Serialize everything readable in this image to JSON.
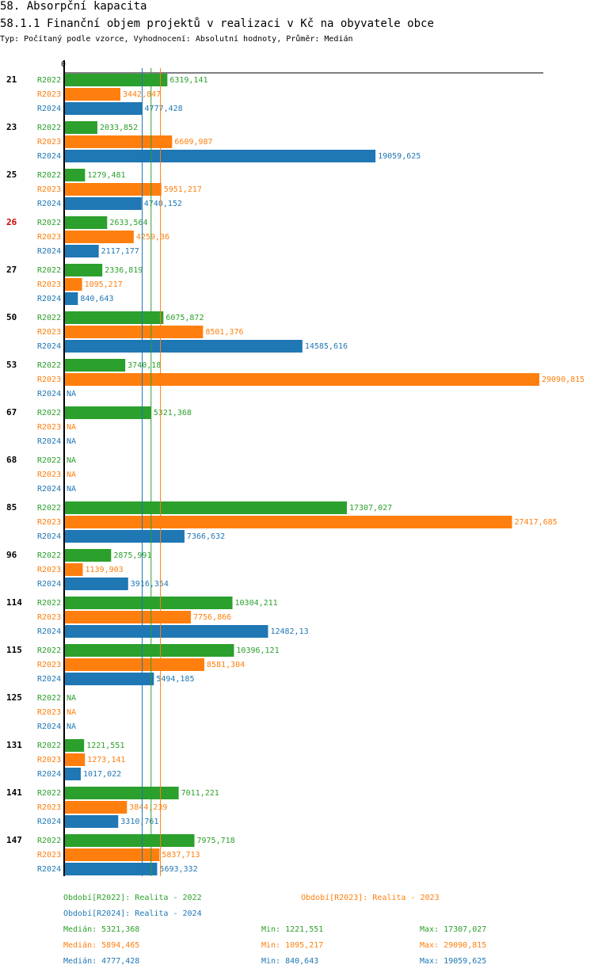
{
  "header": {
    "title": "58. Absorpční kapacita",
    "subtitle": "58.1.1 Finanční objem projektů v realizaci v Kč na obyvatele obce",
    "info": "Typ: Počítaný podle vzorce, Vyhodnocení: Absolutní hodnoty, Průměr: Medián"
  },
  "chart_data": {
    "type": "bar",
    "orientation": "horizontal",
    "title": "58.1.1 Finanční objem projektů v realizaci v Kč na obyvatele obce",
    "axis_zero_label": "0",
    "xlim": [
      0,
      29090.815
    ],
    "highlight_color": "#cc0000",
    "na_label": "NA",
    "series": [
      {
        "key": "R2022",
        "label": "R2022",
        "color": "#2ca02c",
        "median": 5321.368
      },
      {
        "key": "R2023",
        "label": "R2023",
        "color": "#ff7f0e",
        "median": 5894.465
      },
      {
        "key": "R2024",
        "label": "R2024",
        "color": "#1f77b4",
        "median": 4777.428
      }
    ],
    "groups": [
      {
        "name": "21",
        "highlight": false,
        "values": [
          6319.141,
          3442.847,
          4777.428
        ],
        "labels": [
          "6319,141",
          "3442,847",
          "4777,428"
        ]
      },
      {
        "name": "23",
        "highlight": false,
        "values": [
          2033.852,
          6609.987,
          19059.625
        ],
        "labels": [
          "2033,852",
          "6609,987",
          "19059,625"
        ]
      },
      {
        "name": "25",
        "highlight": false,
        "values": [
          1279.481,
          5951.217,
          4740.152
        ],
        "labels": [
          "1279,481",
          "5951,217",
          "4740,152"
        ]
      },
      {
        "name": "26",
        "highlight": true,
        "values": [
          2633.564,
          4259.36,
          2117.177
        ],
        "labels": [
          "2633,564",
          "4259,36",
          "2117,177"
        ]
      },
      {
        "name": "27",
        "highlight": false,
        "values": [
          2336.819,
          1095.217,
          840.643
        ],
        "labels": [
          "2336,819",
          "1095,217",
          "840,643"
        ]
      },
      {
        "name": "50",
        "highlight": false,
        "values": [
          6075.872,
          8501.376,
          14585.616
        ],
        "labels": [
          "6075,872",
          "8501,376",
          "14585,616"
        ]
      },
      {
        "name": "53",
        "highlight": false,
        "values": [
          3740.18,
          29090.815,
          null
        ],
        "labels": [
          "3740,18",
          "29090,815",
          "NA"
        ]
      },
      {
        "name": "67",
        "highlight": false,
        "values": [
          5321.368,
          null,
          null
        ],
        "labels": [
          "5321,368",
          "NA",
          "NA"
        ]
      },
      {
        "name": "68",
        "highlight": false,
        "values": [
          null,
          null,
          null
        ],
        "labels": [
          "NA",
          "NA",
          "NA"
        ]
      },
      {
        "name": "85",
        "highlight": false,
        "values": [
          17307.027,
          27417.685,
          7366.632
        ],
        "labels": [
          "17307,027",
          "27417,685",
          "7366,632"
        ]
      },
      {
        "name": "96",
        "highlight": false,
        "values": [
          2875.991,
          1139.903,
          3916.354
        ],
        "labels": [
          "2875,991",
          "1139,903",
          "3916,354"
        ]
      },
      {
        "name": "114",
        "highlight": false,
        "values": [
          10304.211,
          7756.866,
          12482.13
        ],
        "labels": [
          "10304,211",
          "7756,866",
          "12482,13"
        ]
      },
      {
        "name": "115",
        "highlight": false,
        "values": [
          10396.121,
          8581.304,
          5494.185
        ],
        "labels": [
          "10396,121",
          "8581,304",
          "5494,185"
        ]
      },
      {
        "name": "125",
        "highlight": false,
        "values": [
          null,
          null,
          null
        ],
        "labels": [
          "NA",
          "NA",
          "NA"
        ]
      },
      {
        "name": "131",
        "highlight": false,
        "values": [
          1221.551,
          1273.141,
          1017.022
        ],
        "labels": [
          "1221,551",
          "1273,141",
          "1017,022"
        ]
      },
      {
        "name": "141",
        "highlight": false,
        "values": [
          7011.221,
          3844.239,
          3310.761
        ],
        "labels": [
          "7011,221",
          "3844,239",
          "3310,761"
        ]
      },
      {
        "name": "147",
        "highlight": false,
        "values": [
          7975.718,
          5837.713,
          5693.332
        ],
        "labels": [
          "7975,718",
          "5837,713",
          "5693,332"
        ]
      }
    ]
  },
  "legend": {
    "r2022": "Období[R2022]: Realita - 2022",
    "r2023": "Období[R2023]: Realita - 2023",
    "r2024": "Období[R2024]: Realita - 2024"
  },
  "stats": [
    {
      "median": "Medián: 5321,368",
      "min": "Min: 1221,551",
      "max": "Max: 17307,027"
    },
    {
      "median": "Medián: 5894,465",
      "min": "Min: 1095,217",
      "max": "Max: 29090,815"
    },
    {
      "median": "Medián: 4777,428",
      "min": "Min: 840,643",
      "max": "Max: 19059,625"
    }
  ]
}
